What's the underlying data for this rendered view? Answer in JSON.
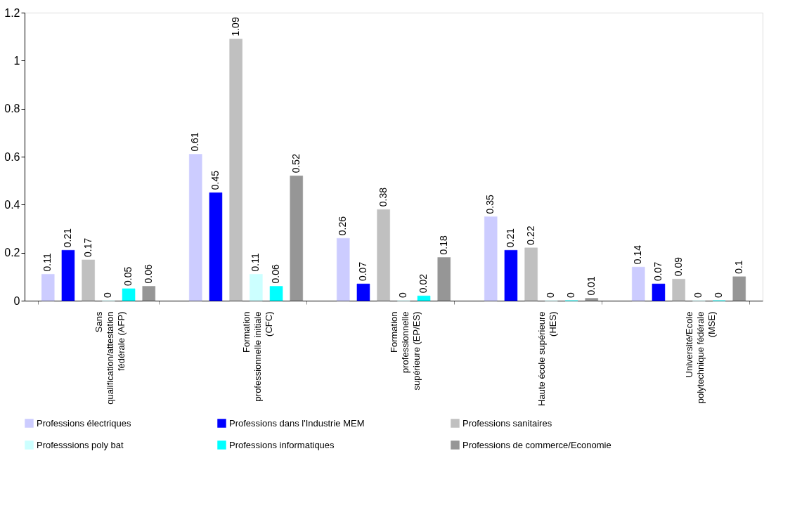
{
  "chart_data": {
    "type": "bar",
    "categories": [
      "Sans\nqualification/attestation\nfédérale (AFP)",
      "Formation\nprofessionnelle initiale\n(CFC)",
      "Formation\nprofessionnelle\nsupérieure (EP/ES)",
      "Haute école supérieure\n(HES)",
      "Université/Ecole\npolytechnique fédérale\n(MSE)"
    ],
    "series": [
      {
        "name": "Professions électriques",
        "color": "#ccccff",
        "values": [
          0.11,
          0.61,
          0.26,
          0.35,
          0.14
        ]
      },
      {
        "name": "Professions dans l'Industrie MEM",
        "color": "#0000ff",
        "values": [
          0.21,
          0.45,
          0.07,
          0.21,
          0.07
        ]
      },
      {
        "name": "Professions sanitaires",
        "color": "#c0c0c0",
        "values": [
          0.17,
          1.09,
          0.38,
          0.22,
          0.09
        ]
      },
      {
        "name": "Professsions poly bat",
        "color": "#ccffff",
        "values": [
          0,
          0.11,
          0,
          0,
          0
        ]
      },
      {
        "name": "Professions informatiques",
        "color": "#00ffff",
        "values": [
          0.05,
          0.06,
          0.02,
          0,
          0
        ]
      },
      {
        "name": "Professions de commerce/Economie",
        "color": "#969696",
        "values": [
          0.06,
          0.52,
          0.18,
          0.01,
          0.1
        ]
      }
    ],
    "ylim": [
      0,
      1.2
    ],
    "yticks": [
      0,
      0.2,
      0.4,
      0.6,
      0.8,
      1,
      1.2
    ],
    "data_labels": true,
    "grid": false,
    "legend": "bottom"
  }
}
